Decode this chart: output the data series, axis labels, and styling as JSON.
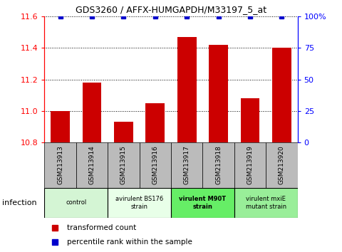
{
  "title": "GDS3260 / AFFX-HUMGAPDH/M33197_5_at",
  "samples": [
    "GSM213913",
    "GSM213914",
    "GSM213915",
    "GSM213916",
    "GSM213917",
    "GSM213918",
    "GSM213919",
    "GSM213920"
  ],
  "red_values": [
    11.0,
    11.18,
    10.93,
    11.05,
    11.47,
    11.42,
    11.08,
    11.4
  ],
  "blue_values": [
    100,
    100,
    100,
    100,
    100,
    100,
    100,
    100
  ],
  "ylim_left": [
    10.8,
    11.6
  ],
  "ylim_right": [
    0,
    100
  ],
  "yticks_left": [
    10.8,
    11.0,
    11.2,
    11.4,
    11.6
  ],
  "yticks_right": [
    0,
    25,
    50,
    75,
    100
  ],
  "ytick_labels_right": [
    "0",
    "25",
    "50",
    "75",
    "100%"
  ],
  "groups": [
    {
      "label": "control",
      "samples": [
        0,
        1
      ],
      "color": "#d4f5d4",
      "bold": false
    },
    {
      "label": "avirulent BS176\nstrain",
      "samples": [
        2,
        3
      ],
      "color": "#e8ffe8",
      "bold": false
    },
    {
      "label": "virulent M90T\nstrain",
      "samples": [
        4,
        5
      ],
      "color": "#66ee66",
      "bold": true
    },
    {
      "label": "virulent mxiE\nmutant strain",
      "samples": [
        6,
        7
      ],
      "color": "#99ee99",
      "bold": false
    }
  ],
  "bar_color": "#cc0000",
  "blue_marker_color": "#0000cc",
  "tick_bg_color": "#bbbbbb",
  "infection_label": "infection",
  "legend_red": "transformed count",
  "legend_blue": "percentile rank within the sample",
  "bar_width": 0.6,
  "xlim": [
    -0.5,
    7.5
  ]
}
